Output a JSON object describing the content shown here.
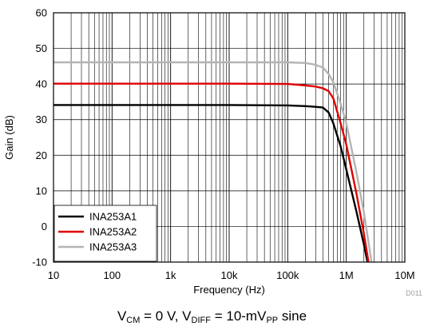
{
  "chart_data": {
    "type": "line",
    "xlabel": "Frequency (Hz)",
    "ylabel": "Gain (dB)",
    "x_scale": "log",
    "xlim": [
      10,
      10000000
    ],
    "ylim": [
      -10,
      60
    ],
    "x_ticks": [
      {
        "value": 10,
        "label": "10"
      },
      {
        "value": 100,
        "label": "100"
      },
      {
        "value": 1000,
        "label": "1k"
      },
      {
        "value": 10000,
        "label": "10k"
      },
      {
        "value": 100000,
        "label": "100k"
      },
      {
        "value": 1000000,
        "label": "1M"
      },
      {
        "value": 10000000,
        "label": "10M"
      }
    ],
    "y_ticks": [
      60,
      50,
      40,
      30,
      20,
      10,
      0,
      -10
    ],
    "grid": true,
    "legend_position": "bottom-left",
    "series": [
      {
        "name": "INA253A1",
        "color": "#000000",
        "x": [
          10,
          100,
          1000,
          10000,
          100000,
          200000,
          300000,
          400000,
          500000,
          600000,
          800000,
          1000000,
          1500000,
          2000000,
          2300000
        ],
        "y": [
          34.1,
          34.1,
          34.1,
          34.1,
          34.0,
          33.8,
          33.6,
          33.4,
          32.0,
          29.0,
          22.5,
          16.0,
          4.0,
          -5.0,
          -10.0
        ]
      },
      {
        "name": "INA253A2",
        "color": "#e00000",
        "x": [
          10,
          100,
          1000,
          10000,
          100000,
          200000,
          300000,
          400000,
          500000,
          600000,
          800000,
          1000000,
          1500000,
          2000000,
          2400000
        ],
        "y": [
          40.1,
          40.1,
          40.1,
          40.1,
          40.0,
          39.6,
          39.3,
          38.8,
          38.0,
          36.0,
          29.0,
          23.0,
          9.0,
          -2.0,
          -10.0
        ]
      },
      {
        "name": "INA253A3",
        "color": "#b4b4b4",
        "x": [
          10,
          100,
          1000,
          10000,
          100000,
          200000,
          300000,
          400000,
          500000,
          600000,
          800000,
          1000000,
          1500000,
          2000000,
          2700000
        ],
        "y": [
          46.1,
          46.1,
          46.1,
          46.1,
          46.1,
          45.9,
          45.4,
          44.6,
          42.8,
          40.5,
          34.5,
          29.0,
          15.0,
          4.0,
          -10.0
        ]
      }
    ],
    "figure_id": "D011"
  },
  "caption": {
    "v1": "V",
    "v1_sub": "CM",
    "mid": " = 0 V, V",
    "v2_sub": "DIFF",
    "mid2": " = 10-mV",
    "v3_sub": "PP",
    "tail": " sine"
  }
}
